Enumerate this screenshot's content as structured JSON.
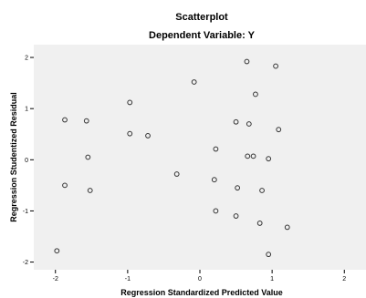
{
  "chart_data": {
    "type": "scatter",
    "title": "Scatterplot",
    "subtitle": "Dependent Variable: Y",
    "xlabel": "Regression Standardized Predicted Value",
    "ylabel": "Regression Studentized Residual",
    "xlim": [
      -2.3,
      2.3
    ],
    "ylim": [
      -2.15,
      2.25
    ],
    "x_ticks": [
      -2,
      -1,
      0,
      1,
      2
    ],
    "y_ticks": [
      -2,
      -1,
      0,
      1,
      2
    ],
    "grid": false,
    "colors": {
      "plot_bg": "#f0f0f0",
      "point_stroke": "#333333",
      "axis": "#000000"
    },
    "points": [
      {
        "x": -1.87,
        "y": 0.78
      },
      {
        "x": -1.57,
        "y": 0.76
      },
      {
        "x": -1.55,
        "y": 0.05
      },
      {
        "x": -1.87,
        "y": -0.5
      },
      {
        "x": -1.52,
        "y": -0.6
      },
      {
        "x": -1.98,
        "y": -1.78
      },
      {
        "x": -0.97,
        "y": 1.12
      },
      {
        "x": -0.97,
        "y": 0.51
      },
      {
        "x": -0.72,
        "y": 0.47
      },
      {
        "x": -0.32,
        "y": -0.28
      },
      {
        "x": -0.08,
        "y": 1.52
      },
      {
        "x": 0.22,
        "y": 0.21
      },
      {
        "x": 0.2,
        "y": -0.39
      },
      {
        "x": 0.22,
        "y": -1.0
      },
      {
        "x": 0.5,
        "y": 0.74
      },
      {
        "x": 0.5,
        "y": -1.1
      },
      {
        "x": 0.52,
        "y": -0.55
      },
      {
        "x": 0.65,
        "y": 1.92
      },
      {
        "x": 0.68,
        "y": 0.7
      },
      {
        "x": 0.66,
        "y": 0.07
      },
      {
        "x": 0.74,
        "y": 0.07
      },
      {
        "x": 0.77,
        "y": 1.28
      },
      {
        "x": 0.83,
        "y": -1.24
      },
      {
        "x": 0.86,
        "y": -0.6
      },
      {
        "x": 0.95,
        "y": 0.02
      },
      {
        "x": 0.95,
        "y": -1.85
      },
      {
        "x": 1.05,
        "y": 1.83
      },
      {
        "x": 1.09,
        "y": 0.59
      },
      {
        "x": 1.21,
        "y": -1.32
      }
    ]
  }
}
